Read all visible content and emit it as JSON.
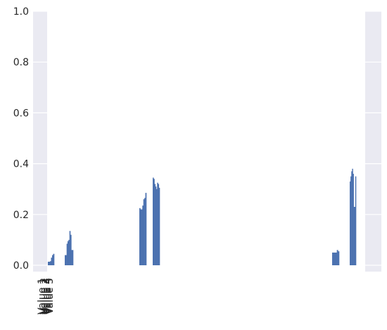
{
  "chart_data": {
    "type": "bar",
    "title": "",
    "xlabel": "",
    "ylabel": "",
    "ylim": [
      0,
      1
    ],
    "yticks": [
      "0.0",
      "0.2",
      "0.4",
      "0.6",
      "0.8",
      "1.0"
    ],
    "grid": true,
    "bar_color": "#4c72b0",
    "background_color": "#eaeaf2",
    "x_tick_labels": [
      "Value 1",
      "Value 2",
      "Value 3",
      "Value 4",
      "Value 5"
    ],
    "bar_groups": [
      {
        "values": [
          0.014,
          0.014,
          0.016,
          0.03,
          0.04,
          0.045
        ]
      },
      {
        "values": [
          0.04,
          0.04,
          0.085,
          0.095,
          0.1,
          0.135,
          0.12,
          0.06,
          0.06
        ]
      },
      {
        "values": [
          0.225,
          0.22,
          0.22,
          0.235,
          0.26,
          0.265,
          0.285
        ]
      },
      {
        "values": [
          0.345,
          0.34,
          0.32,
          0.31,
          0.3,
          0.325,
          0.32,
          0.305
        ]
      },
      {
        "values": [
          0.05,
          0.05,
          0.05,
          0.05,
          0.06,
          0.055
        ]
      },
      {
        "values": [
          0.33,
          0.35,
          0.37,
          0.38,
          0.36,
          0.23,
          0.23,
          0.35
        ]
      }
    ]
  }
}
